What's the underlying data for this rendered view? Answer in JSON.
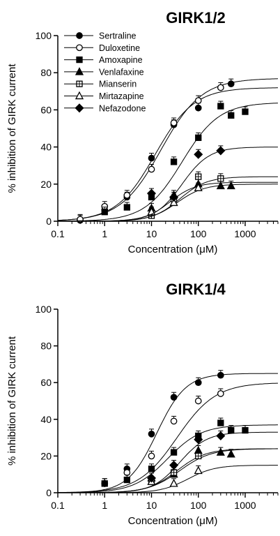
{
  "chart_data": [
    {
      "type": "line",
      "title": "GIRK1/2",
      "xlabel": "Concentration (μM)",
      "ylabel": "% inhibition of GIRK current",
      "xscale": "log",
      "xlim": [
        0.1,
        5000
      ],
      "ylim": [
        0,
        100
      ],
      "xticks": [
        "0.1",
        "1",
        "10",
        "100",
        "1000"
      ],
      "yticks": [
        "0",
        "20",
        "40",
        "60",
        "80",
        "100"
      ],
      "legend_position": "top-left",
      "series": [
        {
          "name": "Sertraline",
          "marker": "circle-filled",
          "x": [
            0.3,
            1,
            3,
            10,
            30,
            100,
            500
          ],
          "y": [
            0.5,
            6,
            13,
            34,
            52,
            61,
            74
          ],
          "fit": {
            "max": 77,
            "ec50": 16,
            "hill": 1.0
          }
        },
        {
          "name": "Duloxetine",
          "marker": "circle-open",
          "x": [
            0.3,
            1,
            3,
            10,
            30,
            100,
            300
          ],
          "y": [
            1,
            8,
            14,
            28,
            53,
            65,
            72
          ],
          "fit": {
            "max": 72,
            "ec50": 12,
            "hill": 1.05
          }
        },
        {
          "name": "Amoxapine",
          "marker": "square-filled",
          "x": [
            1,
            3,
            10,
            30,
            100,
            300,
            500,
            1000
          ],
          "y": [
            5,
            7.5,
            13,
            32,
            45,
            62,
            57,
            59
          ],
          "fit": {
            "max": 64,
            "ec50": 45,
            "hill": 1.1
          }
        },
        {
          "name": "Venlafaxine",
          "marker": "triangle-filled",
          "x": [
            10,
            30,
            100,
            300,
            500
          ],
          "y": [
            7,
            14,
            20,
            19,
            19
          ],
          "fit": {
            "max": 21,
            "ec50": 25,
            "hill": 1.6
          }
        },
        {
          "name": "Mianserin",
          "marker": "square-open",
          "x": [
            10,
            30,
            100,
            300
          ],
          "y": [
            3,
            12,
            24,
            23
          ],
          "fit": {
            "max": 24,
            "ec50": 40,
            "hill": 1.5
          }
        },
        {
          "name": "Mirtazapine",
          "marker": "triangle-open",
          "x": [
            10,
            30,
            100
          ],
          "y": [
            5,
            10,
            18
          ],
          "fit": {
            "max": 20,
            "ec50": 35,
            "hill": 1.5
          }
        },
        {
          "name": "Nefazodone",
          "marker": "diamond-filled",
          "x": [
            10,
            30,
            100,
            300
          ],
          "y": [
            15,
            13,
            36,
            38
          ],
          "fit": {
            "max": 40,
            "ec50": 45,
            "hill": 1.5
          }
        }
      ]
    },
    {
      "type": "line",
      "title": "GIRK1/4",
      "xlabel": "Concentration (μM)",
      "ylabel": "% inhibition of GIRK current",
      "xscale": "log",
      "xlim": [
        0.1,
        5000
      ],
      "ylim": [
        0,
        100
      ],
      "xticks": [
        "0.1",
        "1",
        "10",
        "100",
        "1000"
      ],
      "yticks": [
        "0",
        "20",
        "40",
        "60",
        "80",
        "100"
      ],
      "series": [
        {
          "name": "Sertraline",
          "marker": "circle-filled",
          "x": [
            1,
            3,
            10,
            30,
            100,
            300
          ],
          "y": [
            5,
            13,
            32,
            52,
            60,
            64
          ],
          "fit": {
            "max": 65,
            "ec50": 13,
            "hill": 1.4
          }
        },
        {
          "name": "Duloxetine",
          "marker": "circle-open",
          "x": [
            1,
            3,
            10,
            30,
            100,
            300
          ],
          "y": [
            5,
            11,
            20,
            39,
            50,
            54
          ],
          "fit": {
            "max": 60,
            "ec50": 35,
            "hill": 1.05
          }
        },
        {
          "name": "Amoxapine",
          "marker": "square-filled",
          "x": [
            1,
            3,
            10,
            30,
            100,
            300,
            500,
            1000
          ],
          "y": [
            5,
            7,
            13,
            22,
            31,
            38,
            34,
            34
          ],
          "fit": {
            "max": 37,
            "ec50": 22,
            "hill": 1.2
          }
        },
        {
          "name": "Venlafaxine",
          "marker": "triangle-filled",
          "x": [
            10,
            30,
            100,
            300,
            500
          ],
          "y": [
            8,
            10,
            23,
            22,
            21
          ],
          "fit": {
            "max": 24,
            "ec50": 35,
            "hill": 1.4
          }
        },
        {
          "name": "Mianserin",
          "marker": "square-open",
          "x": [
            10,
            30,
            100
          ],
          "y": [
            6,
            11,
            20
          ],
          "fit": {
            "max": 24,
            "ec50": 40,
            "hill": 1.3
          }
        },
        {
          "name": "Mirtazapine",
          "marker": "triangle-open",
          "x": [
            10,
            30,
            100
          ],
          "y": [
            6,
            5,
            12
          ],
          "fit": {
            "max": 15,
            "ec50": 60,
            "hill": 1.5
          }
        },
        {
          "name": "Nefazodone",
          "marker": "diamond-filled",
          "x": [
            10,
            30,
            100,
            300
          ],
          "y": [
            8,
            15,
            29,
            31
          ],
          "fit": {
            "max": 33,
            "ec50": 40,
            "hill": 1.5
          }
        }
      ]
    }
  ]
}
